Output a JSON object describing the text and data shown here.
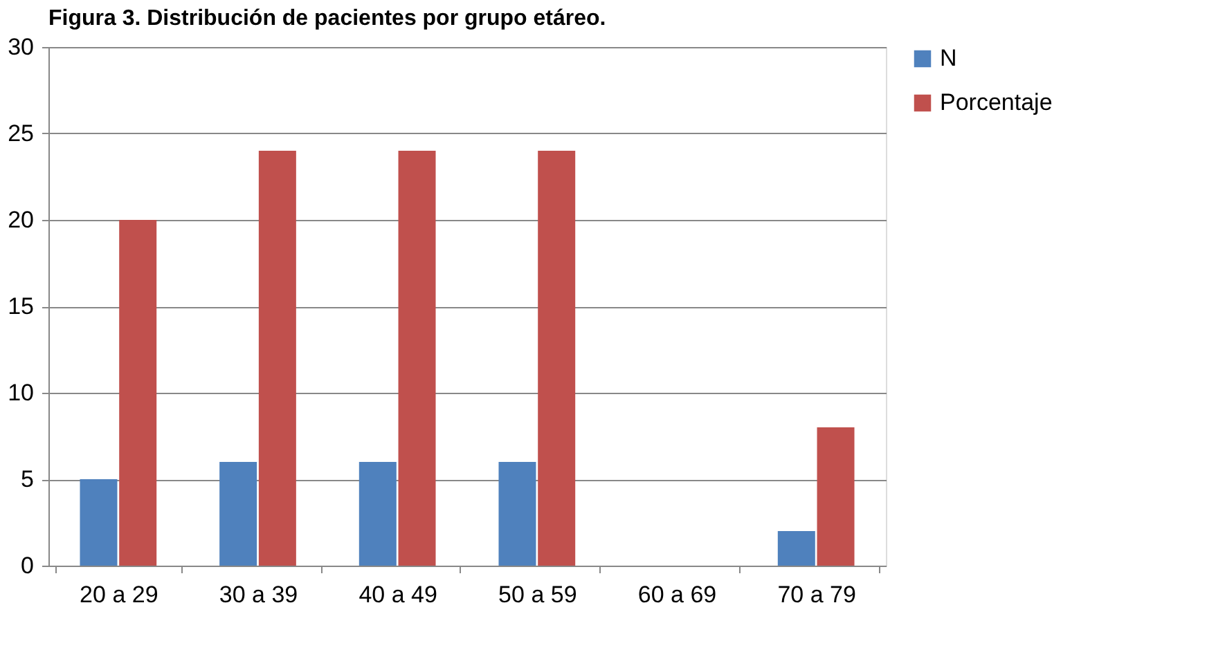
{
  "chart_data": {
    "type": "bar",
    "title": "Figura 3. Distribución de pacientes por grupo etáreo.",
    "categories": [
      "20 a 29",
      "30 a 39",
      "40 a 49",
      "50 a 59",
      "60 a 69",
      "70 a 79"
    ],
    "series": [
      {
        "name": "N",
        "color": "#4f81bd",
        "values": [
          5,
          6,
          6,
          6,
          0,
          2
        ]
      },
      {
        "name": "Porcentaje",
        "color": "#c0504d",
        "values": [
          20,
          24,
          24,
          24,
          0,
          8
        ]
      }
    ],
    "ylim": [
      0,
      30
    ],
    "yticks": [
      0,
      5,
      10,
      15,
      20,
      25,
      30
    ],
    "grid": "y",
    "legend": "right"
  }
}
